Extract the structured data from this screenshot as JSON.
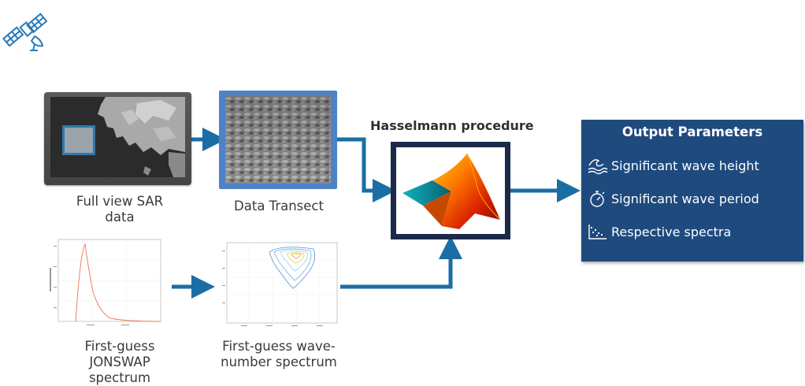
{
  "captions": {
    "sar_full": "Full view SAR\ndata",
    "transect": "Data Transect",
    "jonswap": "First-guess\nJONSWAP\nspectrum",
    "wavenumber": "First-guess wave-\nnumber spectrum"
  },
  "hasselmann": {
    "title": "Hasselmann procedure"
  },
  "output": {
    "title": "Output Parameters",
    "items": [
      {
        "label": "Significant wave height",
        "icon": "wave-icon"
      },
      {
        "label": "Significant wave period",
        "icon": "stopwatch-icon"
      },
      {
        "label": "Respective spectra",
        "icon": "scatter-plot-icon"
      }
    ]
  },
  "colors": {
    "arrow": "#1a6ea3",
    "output_bg": "#1e4a7e",
    "transect_frame": "#4d83c6",
    "hass_frame": "#1c2a4a"
  }
}
